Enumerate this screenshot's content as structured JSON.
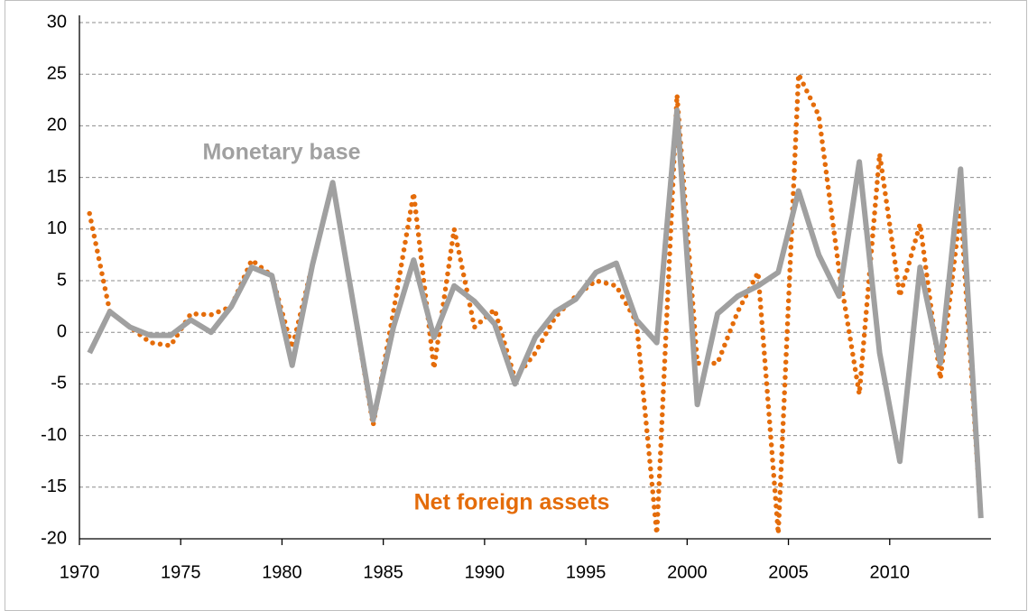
{
  "chart_data": {
    "type": "line",
    "categories": [
      "1970",
      null,
      null,
      null,
      null,
      "1975",
      null,
      null,
      null,
      null,
      "1980",
      null,
      null,
      null,
      null,
      "1985",
      null,
      null,
      null,
      null,
      "1990",
      null,
      null,
      null,
      null,
      "1995",
      null,
      null,
      null,
      null,
      "2000",
      null,
      null,
      null,
      null,
      "2005",
      null,
      null,
      null,
      null,
      "2010",
      null,
      null,
      null,
      null
    ],
    "series": [
      {
        "name": "Net foreign assets",
        "color": "#e46c0a",
        "style": "dotted",
        "values": [
          11.5,
          2,
          0.5,
          -1,
          -1.3,
          1.8,
          1.7,
          2.5,
          7,
          5.5,
          -1.5,
          6.5,
          14.5,
          3,
          -9,
          2,
          13.5,
          -3.5,
          10,
          0.5,
          2.2,
          -4.5,
          -2,
          1.5,
          3.5,
          5,
          4.5,
          1,
          -19.5,
          23,
          -3,
          -3,
          2,
          5.8,
          -19.5,
          25,
          21,
          6,
          -6,
          17.3,
          3.5,
          10.5,
          -4.5,
          12,
          -18
        ]
      },
      {
        "name": "Monetary base",
        "color": "#a0a0a0",
        "style": "solid",
        "values": [
          -2,
          2,
          0.5,
          -0.3,
          -0.3,
          1.2,
          0,
          2.5,
          6.3,
          5.5,
          -3.2,
          6.5,
          14.5,
          3,
          -8.5,
          0.5,
          7,
          -0.5,
          4.5,
          3,
          0.8,
          -5,
          -0.5,
          2,
          3.2,
          5.8,
          6.7,
          1.2,
          -1,
          21.5,
          -7,
          1.8,
          3.5,
          4.5,
          5.8,
          13.7,
          7.5,
          3.5,
          16.5,
          -2,
          -12.5,
          6.3,
          -3,
          15.8,
          -18
        ]
      }
    ],
    "annotations": [
      {
        "text": "Monetary base",
        "color": "#a0a0a0"
      },
      {
        "text": "Net foreign assets",
        "color": "#e46c0a"
      }
    ],
    "ylim": [
      -20,
      30
    ],
    "yticks": [
      -20,
      -15,
      -10,
      -5,
      0,
      5,
      10,
      15,
      20,
      25,
      30
    ],
    "grid": true
  }
}
